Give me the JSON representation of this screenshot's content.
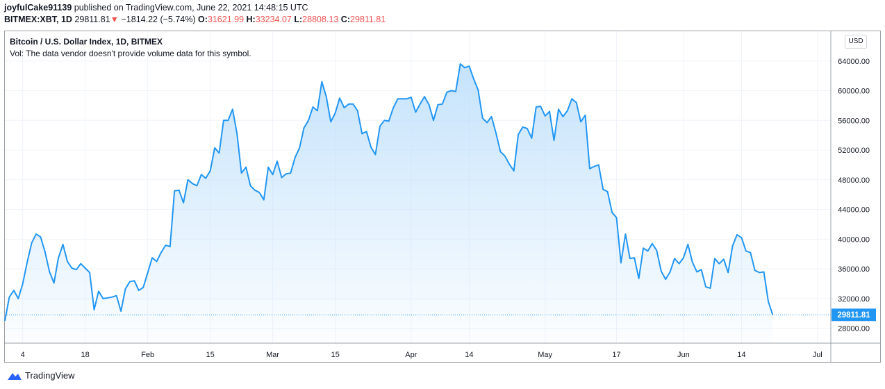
{
  "header": {
    "user": "joyfulCake91139",
    "published_text": "published on TradingView.com, June 22, 2021 14:48:15 UTC",
    "symbol": "BITMEX:XBT, 1D",
    "last_price": "29811.81",
    "change_arrow": "▼",
    "change_text": "−1814.22 (−5.74%)",
    "o_label": "O:",
    "o_value": "31621.99",
    "h_label": "H:",
    "h_value": "33234.07",
    "l_label": "L:",
    "l_value": "28808.13",
    "c_label": "C:",
    "c_value": "29811.81"
  },
  "legend": {
    "title": "Bitcoin / U.S. Dollar Index, 1D, BITMEX",
    "vol_text": "Vol: The data vendor doesn't provide volume data for this symbol."
  },
  "currency_button": "USD",
  "footer": {
    "brand": "TradingView"
  },
  "colors": {
    "line": "#2196f3",
    "fill_top": "#bbdefb",
    "price_tag": "#2196f3",
    "grid": "#f0f3fa",
    "text": "#131722"
  },
  "chart_data": {
    "type": "area",
    "title": "Bitcoin / U.S. Dollar Index, 1D, BITMEX",
    "xlabel": "",
    "ylabel": "",
    "ylim": [
      26000,
      68000
    ],
    "xlim": [
      "2020-12-31",
      "2021-07-04"
    ],
    "y_ticks": [
      28000,
      32000,
      36000,
      40000,
      44000,
      48000,
      52000,
      56000,
      60000,
      64000
    ],
    "y_tick_labels": [
      "28000.00",
      "32000.00",
      "36000.00",
      "40000.00",
      "44000.00",
      "48000.00",
      "52000.00",
      "56000.00",
      "60000.00",
      "64000.00"
    ],
    "x_ticks": [
      {
        "date": "2021-01-04",
        "label": "4"
      },
      {
        "date": "2021-01-18",
        "label": "18"
      },
      {
        "date": "2021-02-01",
        "label": "Feb"
      },
      {
        "date": "2021-02-15",
        "label": "15"
      },
      {
        "date": "2021-03-01",
        "label": "Mar"
      },
      {
        "date": "2021-03-15",
        "label": "15"
      },
      {
        "date": "2021-04-01",
        "label": "Apr"
      },
      {
        "date": "2021-04-14",
        "label": "14"
      },
      {
        "date": "2021-05-01",
        "label": "May"
      },
      {
        "date": "2021-05-17",
        "label": "17"
      },
      {
        "date": "2021-06-01",
        "label": "Jun"
      },
      {
        "date": "2021-06-14",
        "label": "14"
      },
      {
        "date": "2021-07-01",
        "label": "Jul"
      }
    ],
    "last_value_label": "29811.81",
    "last_value": 29811.81,
    "series": [
      {
        "values": [
          {
            "x": "2020-12-31",
            "y": 29000
          },
          {
            "x": "2021-01-01",
            "y": 32200
          },
          {
            "x": "2021-01-02",
            "y": 33100
          },
          {
            "x": "2021-01-03",
            "y": 32000
          },
          {
            "x": "2021-01-04",
            "y": 34000
          },
          {
            "x": "2021-01-05",
            "y": 36900
          },
          {
            "x": "2021-01-06",
            "y": 39500
          },
          {
            "x": "2021-01-07",
            "y": 40700
          },
          {
            "x": "2021-01-08",
            "y": 40300
          },
          {
            "x": "2021-01-09",
            "y": 38300
          },
          {
            "x": "2021-01-10",
            "y": 35600
          },
          {
            "x": "2021-01-11",
            "y": 34100
          },
          {
            "x": "2021-01-12",
            "y": 37500
          },
          {
            "x": "2021-01-13",
            "y": 39300
          },
          {
            "x": "2021-01-14",
            "y": 37000
          },
          {
            "x": "2021-01-15",
            "y": 36100
          },
          {
            "x": "2021-01-16",
            "y": 35900
          },
          {
            "x": "2021-01-17",
            "y": 36700
          },
          {
            "x": "2021-01-18",
            "y": 36100
          },
          {
            "x": "2021-01-19",
            "y": 35500
          },
          {
            "x": "2021-01-20",
            "y": 30500
          },
          {
            "x": "2021-01-21",
            "y": 33000
          },
          {
            "x": "2021-01-22",
            "y": 32000
          },
          {
            "x": "2021-01-23",
            "y": 32100
          },
          {
            "x": "2021-01-24",
            "y": 32200
          },
          {
            "x": "2021-01-25",
            "y": 32400
          },
          {
            "x": "2021-01-26",
            "y": 30300
          },
          {
            "x": "2021-01-27",
            "y": 33300
          },
          {
            "x": "2021-01-28",
            "y": 34300
          },
          {
            "x": "2021-01-29",
            "y": 34400
          },
          {
            "x": "2021-01-30",
            "y": 33100
          },
          {
            "x": "2021-01-31",
            "y": 33500
          },
          {
            "x": "2021-02-01",
            "y": 35500
          },
          {
            "x": "2021-02-02",
            "y": 37500
          },
          {
            "x": "2021-02-03",
            "y": 37000
          },
          {
            "x": "2021-02-04",
            "y": 38200
          },
          {
            "x": "2021-02-05",
            "y": 39200
          },
          {
            "x": "2021-02-06",
            "y": 39000
          },
          {
            "x": "2021-02-07",
            "y": 46500
          },
          {
            "x": "2021-02-08",
            "y": 46600
          },
          {
            "x": "2021-02-09",
            "y": 44900
          },
          {
            "x": "2021-02-10",
            "y": 48000
          },
          {
            "x": "2021-02-11",
            "y": 47500
          },
          {
            "x": "2021-02-12",
            "y": 47200
          },
          {
            "x": "2021-02-13",
            "y": 48700
          },
          {
            "x": "2021-02-14",
            "y": 48200
          },
          {
            "x": "2021-02-15",
            "y": 49200
          },
          {
            "x": "2021-02-16",
            "y": 52300
          },
          {
            "x": "2021-02-17",
            "y": 51600
          },
          {
            "x": "2021-02-18",
            "y": 56000
          },
          {
            "x": "2021-02-19",
            "y": 56000
          },
          {
            "x": "2021-02-20",
            "y": 57500
          },
          {
            "x": "2021-02-21",
            "y": 54200
          },
          {
            "x": "2021-02-22",
            "y": 48900
          },
          {
            "x": "2021-02-23",
            "y": 49700
          },
          {
            "x": "2021-02-24",
            "y": 47200
          },
          {
            "x": "2021-02-25",
            "y": 46600
          },
          {
            "x": "2021-02-26",
            "y": 46300
          },
          {
            "x": "2021-02-27",
            "y": 45300
          },
          {
            "x": "2021-02-28",
            "y": 49700
          },
          {
            "x": "2021-03-01",
            "y": 48700
          },
          {
            "x": "2021-03-02",
            "y": 50500
          },
          {
            "x": "2021-03-03",
            "y": 48300
          },
          {
            "x": "2021-03-04",
            "y": 48800
          },
          {
            "x": "2021-03-05",
            "y": 48900
          },
          {
            "x": "2021-03-06",
            "y": 51000
          },
          {
            "x": "2021-03-07",
            "y": 52300
          },
          {
            "x": "2021-03-08",
            "y": 55000
          },
          {
            "x": "2021-03-09",
            "y": 56000
          },
          {
            "x": "2021-03-10",
            "y": 57800
          },
          {
            "x": "2021-03-11",
            "y": 57300
          },
          {
            "x": "2021-03-12",
            "y": 61200
          },
          {
            "x": "2021-03-13",
            "y": 59200
          },
          {
            "x": "2021-03-14",
            "y": 55800
          },
          {
            "x": "2021-03-15",
            "y": 57000
          },
          {
            "x": "2021-03-16",
            "y": 59000
          },
          {
            "x": "2021-03-17",
            "y": 57700
          },
          {
            "x": "2021-03-18",
            "y": 58200
          },
          {
            "x": "2021-03-19",
            "y": 58200
          },
          {
            "x": "2021-03-20",
            "y": 57300
          },
          {
            "x": "2021-03-21",
            "y": 54200
          },
          {
            "x": "2021-03-22",
            "y": 54500
          },
          {
            "x": "2021-03-23",
            "y": 52400
          },
          {
            "x": "2021-03-24",
            "y": 51400
          },
          {
            "x": "2021-03-25",
            "y": 55200
          },
          {
            "x": "2021-03-26",
            "y": 56000
          },
          {
            "x": "2021-03-27",
            "y": 55900
          },
          {
            "x": "2021-03-28",
            "y": 57700
          },
          {
            "x": "2021-03-29",
            "y": 58900
          },
          {
            "x": "2021-03-30",
            "y": 58900
          },
          {
            "x": "2021-03-31",
            "y": 58900
          },
          {
            "x": "2021-04-01",
            "y": 59100
          },
          {
            "x": "2021-04-02",
            "y": 57100
          },
          {
            "x": "2021-04-03",
            "y": 58200
          },
          {
            "x": "2021-04-04",
            "y": 59200
          },
          {
            "x": "2021-04-05",
            "y": 58100
          },
          {
            "x": "2021-04-06",
            "y": 56000
          },
          {
            "x": "2021-04-07",
            "y": 58100
          },
          {
            "x": "2021-04-08",
            "y": 58200
          },
          {
            "x": "2021-04-09",
            "y": 59800
          },
          {
            "x": "2021-04-10",
            "y": 60000
          },
          {
            "x": "2021-04-11",
            "y": 59900
          },
          {
            "x": "2021-04-12",
            "y": 63600
          },
          {
            "x": "2021-04-13",
            "y": 63100
          },
          {
            "x": "2021-04-14",
            "y": 63300
          },
          {
            "x": "2021-04-15",
            "y": 61600
          },
          {
            "x": "2021-04-16",
            "y": 60100
          },
          {
            "x": "2021-04-17",
            "y": 56300
          },
          {
            "x": "2021-04-18",
            "y": 55700
          },
          {
            "x": "2021-04-19",
            "y": 56500
          },
          {
            "x": "2021-04-20",
            "y": 54300
          },
          {
            "x": "2021-04-21",
            "y": 51800
          },
          {
            "x": "2021-04-22",
            "y": 51200
          },
          {
            "x": "2021-04-23",
            "y": 50100
          },
          {
            "x": "2021-04-24",
            "y": 49200
          },
          {
            "x": "2021-04-25",
            "y": 54100
          },
          {
            "x": "2021-04-26",
            "y": 55100
          },
          {
            "x": "2021-04-27",
            "y": 54900
          },
          {
            "x": "2021-04-28",
            "y": 53600
          },
          {
            "x": "2021-04-29",
            "y": 57800
          },
          {
            "x": "2021-04-30",
            "y": 57900
          },
          {
            "x": "2021-05-01",
            "y": 56600
          },
          {
            "x": "2021-05-02",
            "y": 57200
          },
          {
            "x": "2021-05-03",
            "y": 53300
          },
          {
            "x": "2021-05-04",
            "y": 57500
          },
          {
            "x": "2021-05-05",
            "y": 56500
          },
          {
            "x": "2021-05-06",
            "y": 57300
          },
          {
            "x": "2021-05-07",
            "y": 58900
          },
          {
            "x": "2021-05-08",
            "y": 58400
          },
          {
            "x": "2021-05-09",
            "y": 55800
          },
          {
            "x": "2021-05-10",
            "y": 56700
          },
          {
            "x": "2021-05-11",
            "y": 49500
          },
          {
            "x": "2021-05-12",
            "y": 49800
          },
          {
            "x": "2021-05-13",
            "y": 50000
          },
          {
            "x": "2021-05-14",
            "y": 46700
          },
          {
            "x": "2021-05-15",
            "y": 46400
          },
          {
            "x": "2021-05-16",
            "y": 43600
          },
          {
            "x": "2021-05-17",
            "y": 42900
          },
          {
            "x": "2021-05-18",
            "y": 36800
          },
          {
            "x": "2021-05-19",
            "y": 40700
          },
          {
            "x": "2021-05-20",
            "y": 37400
          },
          {
            "x": "2021-05-21",
            "y": 37500
          },
          {
            "x": "2021-05-22",
            "y": 34700
          },
          {
            "x": "2021-05-23",
            "y": 38800
          },
          {
            "x": "2021-05-24",
            "y": 38400
          },
          {
            "x": "2021-05-25",
            "y": 39400
          },
          {
            "x": "2021-05-26",
            "y": 38500
          },
          {
            "x": "2021-05-27",
            "y": 35700
          },
          {
            "x": "2021-05-28",
            "y": 34600
          },
          {
            "x": "2021-05-29",
            "y": 35600
          },
          {
            "x": "2021-05-30",
            "y": 37400
          },
          {
            "x": "2021-05-31",
            "y": 36700
          },
          {
            "x": "2021-06-01",
            "y": 37500
          },
          {
            "x": "2021-06-02",
            "y": 39300
          },
          {
            "x": "2021-06-03",
            "y": 36900
          },
          {
            "x": "2021-06-04",
            "y": 35600
          },
          {
            "x": "2021-06-05",
            "y": 35900
          },
          {
            "x": "2021-06-06",
            "y": 33600
          },
          {
            "x": "2021-06-07",
            "y": 33400
          },
          {
            "x": "2021-06-08",
            "y": 37400
          },
          {
            "x": "2021-06-09",
            "y": 36700
          },
          {
            "x": "2021-06-10",
            "y": 37300
          },
          {
            "x": "2021-06-11",
            "y": 35500
          },
          {
            "x": "2021-06-12",
            "y": 39100
          },
          {
            "x": "2021-06-13",
            "y": 40600
          },
          {
            "x": "2021-06-14",
            "y": 40200
          },
          {
            "x": "2021-06-15",
            "y": 38400
          },
          {
            "x": "2021-06-16",
            "y": 38200
          },
          {
            "x": "2021-06-17",
            "y": 35800
          },
          {
            "x": "2021-06-18",
            "y": 35500
          },
          {
            "x": "2021-06-19",
            "y": 35600
          },
          {
            "x": "2021-06-20",
            "y": 31600
          },
          {
            "x": "2021-06-21",
            "y": 29811.81
          }
        ]
      }
    ]
  }
}
